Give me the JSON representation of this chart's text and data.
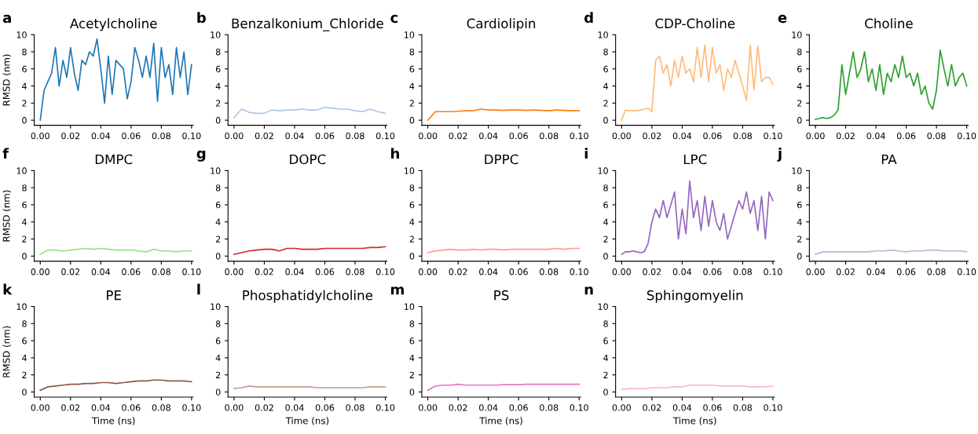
{
  "chart_data": [
    {
      "type": "line",
      "title": "Acetylcholine",
      "annotations": [
        "a"
      ],
      "ylabel": "RMSD (nm)",
      "x": [
        0,
        0.0025,
        0.005,
        0.0075,
        0.01,
        0.0125,
        0.015,
        0.0175,
        0.02,
        0.0225,
        0.025,
        0.0275,
        0.03,
        0.0325,
        0.035,
        0.0375,
        0.04,
        0.0425,
        0.045,
        0.0475,
        0.05,
        0.0525,
        0.055,
        0.0575,
        0.06,
        0.0625,
        0.065,
        0.0675,
        0.07,
        0.0725,
        0.075,
        0.0775,
        0.08,
        0.0825,
        0.085,
        0.0875,
        0.09,
        0.0925,
        0.095,
        0.0975,
        0.1
      ],
      "series": [
        {
          "color": "#1f77b4",
          "values": [
            0,
            3.5,
            4.5,
            5.5,
            8.5,
            4,
            7,
            5,
            8.5,
            5.5,
            3.5,
            7,
            6.5,
            8,
            7.5,
            9.5,
            6,
            2,
            7.5,
            3,
            7,
            6.5,
            6,
            2.5,
            4.5,
            8.5,
            7,
            5,
            7.5,
            5,
            9,
            2.2,
            8.5,
            5,
            6.5,
            3,
            8.5,
            5,
            8,
            3,
            6.5
          ]
        }
      ],
      "xlim": [
        -0.004,
        0.101
      ],
      "ylim": [
        -0.6,
        10
      ],
      "xticks": [
        {
          "value": 0,
          "label": "0.00"
        },
        {
          "value": 0.02,
          "label": "0.02"
        },
        {
          "value": 0.04,
          "label": "0.04"
        },
        {
          "value": 0.06,
          "label": "0.06"
        },
        {
          "value": 0.08,
          "label": "0.08"
        },
        {
          "value": 0.1,
          "label": "0.10"
        }
      ],
      "yticks": [
        0,
        2,
        4,
        6,
        8,
        10
      ]
    },
    {
      "type": "line",
      "title": "Benzalkonium_Chloride",
      "annotations": [
        "b"
      ],
      "x": [
        0,
        0.005,
        0.01,
        0.015,
        0.02,
        0.025,
        0.03,
        0.035,
        0.04,
        0.045,
        0.05,
        0.055,
        0.06,
        0.065,
        0.07,
        0.075,
        0.08,
        0.085,
        0.09,
        0.095,
        0.1
      ],
      "series": [
        {
          "color": "#aec7e8",
          "values": [
            0.3,
            1.3,
            0.9,
            0.8,
            0.8,
            1.2,
            1.1,
            1.2,
            1.2,
            1.3,
            1.2,
            1.2,
            1.5,
            1.4,
            1.3,
            1.3,
            1.1,
            1.0,
            1.3,
            1.0,
            0.8
          ]
        }
      ],
      "xlim": [
        -0.004,
        0.101
      ],
      "ylim": [
        -0.6,
        10
      ],
      "xticks": [
        {
          "value": 0,
          "label": "0.00"
        },
        {
          "value": 0.02,
          "label": "0.02"
        },
        {
          "value": 0.04,
          "label": "0.04"
        },
        {
          "value": 0.06,
          "label": "0.06"
        },
        {
          "value": 0.08,
          "label": "0.08"
        },
        {
          "value": 0.1,
          "label": "0.10"
        }
      ],
      "yticks": [
        0,
        2,
        4,
        6,
        8,
        10
      ]
    },
    {
      "type": "line",
      "title": "Cardiolipin",
      "annotations": [
        "c"
      ],
      "x": [
        0,
        0.005,
        0.01,
        0.015,
        0.02,
        0.025,
        0.03,
        0.035,
        0.04,
        0.045,
        0.05,
        0.055,
        0.06,
        0.065,
        0.07,
        0.075,
        0.08,
        0.085,
        0.09,
        0.095,
        0.1
      ],
      "series": [
        {
          "color": "#ff7f0e",
          "values": [
            0,
            1,
            1,
            1,
            1.05,
            1.1,
            1.1,
            1.3,
            1.2,
            1.2,
            1.15,
            1.2,
            1.2,
            1.15,
            1.2,
            1.15,
            1.1,
            1.2,
            1.15,
            1.1,
            1.1
          ]
        }
      ],
      "xlim": [
        -0.004,
        0.101
      ],
      "ylim": [
        -0.6,
        10
      ],
      "xticks": [
        {
          "value": 0,
          "label": "0.00"
        },
        {
          "value": 0.02,
          "label": "0.02"
        },
        {
          "value": 0.04,
          "label": "0.04"
        },
        {
          "value": 0.06,
          "label": "0.06"
        },
        {
          "value": 0.08,
          "label": "0.08"
        },
        {
          "value": 0.1,
          "label": "0.10"
        }
      ],
      "yticks": [
        0,
        2,
        4,
        6,
        8,
        10
      ]
    },
    {
      "type": "line",
      "title": "CDP-Choline",
      "annotations": [
        "d"
      ],
      "x": [
        0,
        0.0025,
        0.005,
        0.0075,
        0.01,
        0.0125,
        0.015,
        0.0175,
        0.02,
        0.0225,
        0.025,
        0.0275,
        0.03,
        0.0325,
        0.035,
        0.0375,
        0.04,
        0.0425,
        0.045,
        0.0475,
        0.05,
        0.0525,
        0.055,
        0.0575,
        0.06,
        0.0625,
        0.065,
        0.0675,
        0.07,
        0.0725,
        0.075,
        0.0775,
        0.08,
        0.0825,
        0.085,
        0.0875,
        0.09,
        0.0925,
        0.095,
        0.0975,
        0.1
      ],
      "series": [
        {
          "color": "#ffbb78",
          "values": [
            0,
            1.2,
            1.1,
            1.1,
            1.1,
            1.2,
            1.3,
            1.4,
            1.0,
            7.0,
            7.5,
            5.5,
            6.5,
            4.0,
            7.0,
            5.0,
            7.5,
            5.5,
            6.0,
            4.5,
            8.5,
            5.0,
            8.8,
            4.5,
            8.5,
            5.5,
            6.5,
            3.5,
            6.0,
            5.0,
            7.0,
            5.5,
            4.0,
            2.3,
            8.8,
            3.5,
            8.7,
            4.5,
            5.0,
            5.0,
            4.2
          ]
        }
      ],
      "xlim": [
        -0.004,
        0.101
      ],
      "ylim": [
        -0.6,
        10
      ],
      "xticks": [
        {
          "value": 0,
          "label": "0.00"
        },
        {
          "value": 0.02,
          "label": "0.02"
        },
        {
          "value": 0.04,
          "label": "0.04"
        },
        {
          "value": 0.06,
          "label": "0.06"
        },
        {
          "value": 0.08,
          "label": "0.08"
        },
        {
          "value": 0.1,
          "label": "0.10"
        }
      ],
      "yticks": [
        0,
        2,
        4,
        6,
        8,
        10
      ]
    },
    {
      "type": "line",
      "title": "Choline",
      "annotations": [
        "e"
      ],
      "x": [
        0,
        0.0025,
        0.005,
        0.0075,
        0.01,
        0.0125,
        0.015,
        0.0175,
        0.02,
        0.0225,
        0.025,
        0.0275,
        0.03,
        0.0325,
        0.035,
        0.0375,
        0.04,
        0.0425,
        0.045,
        0.0475,
        0.05,
        0.0525,
        0.055,
        0.0575,
        0.06,
        0.0625,
        0.065,
        0.0675,
        0.07,
        0.0725,
        0.075,
        0.0775,
        0.08,
        0.0825,
        0.085,
        0.0875,
        0.09,
        0.0925,
        0.095,
        0.0975,
        0.1
      ],
      "series": [
        {
          "color": "#2ca02c",
          "values": [
            0.1,
            0.2,
            0.3,
            0.2,
            0.3,
            0.6,
            1.2,
            6.5,
            3.0,
            5.5,
            8.0,
            5.0,
            6.0,
            8.0,
            4.5,
            6.0,
            3.5,
            6.5,
            3.0,
            5.5,
            4.5,
            6.5,
            5.0,
            7.5,
            5.0,
            5.5,
            4.0,
            5.5,
            3.0,
            4.0,
            2.0,
            1.3,
            3.5,
            8.2,
            6.0,
            4.0,
            6.5,
            4.0,
            5.0,
            5.5,
            4.0
          ]
        }
      ],
      "xlim": [
        -0.004,
        0.101
      ],
      "ylim": [
        -0.6,
        10
      ],
      "xticks": [
        {
          "value": 0,
          "label": "0.00"
        },
        {
          "value": 0.02,
          "label": "0.02"
        },
        {
          "value": 0.04,
          "label": "0.04"
        },
        {
          "value": 0.06,
          "label": "0.06"
        },
        {
          "value": 0.08,
          "label": "0.08"
        },
        {
          "value": 0.1,
          "label": "0.10"
        }
      ],
      "yticks": [
        0,
        2,
        4,
        6,
        8,
        10
      ]
    },
    {
      "type": "line",
      "title": "DMPC",
      "annotations": [
        "f"
      ],
      "ylabel": "RMSD (nm)",
      "x": [
        0,
        0.005,
        0.01,
        0.015,
        0.02,
        0.025,
        0.03,
        0.035,
        0.04,
        0.045,
        0.05,
        0.055,
        0.06,
        0.065,
        0.07,
        0.075,
        0.08,
        0.085,
        0.09,
        0.095,
        0.1
      ],
      "series": [
        {
          "color": "#98df8a",
          "values": [
            0.2,
            0.7,
            0.7,
            0.6,
            0.7,
            0.8,
            0.9,
            0.8,
            0.9,
            0.8,
            0.7,
            0.7,
            0.7,
            0.6,
            0.5,
            0.8,
            0.6,
            0.6,
            0.5,
            0.6,
            0.6
          ]
        }
      ],
      "xlim": [
        -0.004,
        0.101
      ],
      "ylim": [
        -0.6,
        10
      ],
      "xticks": [
        {
          "value": 0,
          "label": "0.00"
        },
        {
          "value": 0.02,
          "label": "0.02"
        },
        {
          "value": 0.04,
          "label": "0.04"
        },
        {
          "value": 0.06,
          "label": "0.06"
        },
        {
          "value": 0.08,
          "label": "0.08"
        },
        {
          "value": 0.1,
          "label": "0.10"
        }
      ],
      "yticks": [
        0,
        2,
        4,
        6,
        8,
        10
      ]
    },
    {
      "type": "line",
      "title": "DOPC",
      "annotations": [
        "g"
      ],
      "x": [
        0,
        0.005,
        0.01,
        0.015,
        0.02,
        0.025,
        0.03,
        0.035,
        0.04,
        0.045,
        0.05,
        0.055,
        0.06,
        0.065,
        0.07,
        0.075,
        0.08,
        0.085,
        0.09,
        0.095,
        0.1
      ],
      "series": [
        {
          "color": "#d62728",
          "values": [
            0.2,
            0.4,
            0.6,
            0.7,
            0.8,
            0.8,
            0.6,
            0.9,
            0.9,
            0.8,
            0.8,
            0.8,
            0.9,
            0.9,
            0.9,
            0.9,
            0.9,
            0.9,
            1.0,
            1.0,
            1.1
          ]
        }
      ],
      "xlim": [
        -0.004,
        0.101
      ],
      "ylim": [
        -0.6,
        10
      ],
      "xticks": [
        {
          "value": 0,
          "label": "0.00"
        },
        {
          "value": 0.02,
          "label": "0.02"
        },
        {
          "value": 0.04,
          "label": "0.04"
        },
        {
          "value": 0.06,
          "label": "0.06"
        },
        {
          "value": 0.08,
          "label": "0.08"
        },
        {
          "value": 0.1,
          "label": "0.10"
        }
      ],
      "yticks": [
        0,
        2,
        4,
        6,
        8,
        10
      ]
    },
    {
      "type": "line",
      "title": "DPPC",
      "annotations": [
        "h"
      ],
      "x": [
        0,
        0.005,
        0.01,
        0.015,
        0.02,
        0.025,
        0.03,
        0.035,
        0.04,
        0.045,
        0.05,
        0.055,
        0.06,
        0.065,
        0.07,
        0.075,
        0.08,
        0.085,
        0.09,
        0.095,
        0.1
      ],
      "series": [
        {
          "color": "#ff9896",
          "values": [
            0.4,
            0.6,
            0.7,
            0.8,
            0.7,
            0.7,
            0.8,
            0.7,
            0.8,
            0.8,
            0.7,
            0.8,
            0.8,
            0.8,
            0.8,
            0.8,
            0.8,
            0.9,
            0.8,
            0.9,
            0.9
          ]
        }
      ],
      "xlim": [
        -0.004,
        0.101
      ],
      "ylim": [
        -0.6,
        10
      ],
      "xticks": [
        {
          "value": 0,
          "label": "0.00"
        },
        {
          "value": 0.02,
          "label": "0.02"
        },
        {
          "value": 0.04,
          "label": "0.04"
        },
        {
          "value": 0.06,
          "label": "0.06"
        },
        {
          "value": 0.08,
          "label": "0.08"
        },
        {
          "value": 0.1,
          "label": "0.10"
        }
      ],
      "yticks": [
        0,
        2,
        4,
        6,
        8,
        10
      ]
    },
    {
      "type": "line",
      "title": "LPC",
      "annotations": [
        "i"
      ],
      "x": [
        0,
        0.0025,
        0.005,
        0.0075,
        0.01,
        0.0125,
        0.015,
        0.0175,
        0.02,
        0.0225,
        0.025,
        0.0275,
        0.03,
        0.0325,
        0.035,
        0.0375,
        0.04,
        0.0425,
        0.045,
        0.0475,
        0.05,
        0.0525,
        0.055,
        0.0575,
        0.06,
        0.0625,
        0.065,
        0.0675,
        0.07,
        0.0725,
        0.075,
        0.0775,
        0.08,
        0.0825,
        0.085,
        0.0875,
        0.09,
        0.0925,
        0.095,
        0.0975,
        0.1
      ],
      "series": [
        {
          "color": "#9467bd",
          "values": [
            0.2,
            0.5,
            0.5,
            0.6,
            0.5,
            0.4,
            0.5,
            1.5,
            4.0,
            5.5,
            4.5,
            6.5,
            4.5,
            6.0,
            7.5,
            2.0,
            5.5,
            2.6,
            8.8,
            4.5,
            6.5,
            3.0,
            7.0,
            3.5,
            6.5,
            4.0,
            3.0,
            5.0,
            2.0,
            3.5,
            5.0,
            6.5,
            5.5,
            7.5,
            5.0,
            6.5,
            3.0,
            7.0,
            2.0,
            7.5,
            6.5
          ]
        }
      ],
      "xlim": [
        -0.004,
        0.101
      ],
      "ylim": [
        -0.6,
        10
      ],
      "xticks": [
        {
          "value": 0,
          "label": "0.00"
        },
        {
          "value": 0.02,
          "label": "0.02"
        },
        {
          "value": 0.04,
          "label": "0.04"
        },
        {
          "value": 0.06,
          "label": "0.06"
        },
        {
          "value": 0.08,
          "label": "0.08"
        },
        {
          "value": 0.1,
          "label": "0.10"
        }
      ],
      "yticks": [
        0,
        2,
        4,
        6,
        8,
        10
      ]
    },
    {
      "type": "line",
      "title": "PA",
      "annotations": [
        "j"
      ],
      "x": [
        0,
        0.005,
        0.01,
        0.015,
        0.02,
        0.025,
        0.03,
        0.035,
        0.04,
        0.045,
        0.05,
        0.055,
        0.06,
        0.065,
        0.07,
        0.075,
        0.08,
        0.085,
        0.09,
        0.095,
        0.1
      ],
      "series": [
        {
          "color": "#c5b0d5",
          "values": [
            0.2,
            0.5,
            0.5,
            0.5,
            0.5,
            0.5,
            0.5,
            0.5,
            0.6,
            0.6,
            0.7,
            0.6,
            0.5,
            0.6,
            0.6,
            0.7,
            0.7,
            0.6,
            0.6,
            0.6,
            0.5
          ]
        }
      ],
      "xlim": [
        -0.004,
        0.101
      ],
      "ylim": [
        -0.6,
        10
      ],
      "xticks": [
        {
          "value": 0,
          "label": "0.00"
        },
        {
          "value": 0.02,
          "label": "0.02"
        },
        {
          "value": 0.04,
          "label": "0.04"
        },
        {
          "value": 0.06,
          "label": "0.06"
        },
        {
          "value": 0.08,
          "label": "0.08"
        },
        {
          "value": 0.1,
          "label": "0.10"
        }
      ],
      "yticks": [
        0,
        2,
        4,
        6,
        8,
        10
      ]
    },
    {
      "type": "line",
      "title": "PE",
      "annotations": [
        "k"
      ],
      "ylabel": "RMSD (nm)",
      "xlabel": "Time (ns)",
      "x": [
        0,
        0.005,
        0.01,
        0.015,
        0.02,
        0.025,
        0.03,
        0.035,
        0.04,
        0.045,
        0.05,
        0.055,
        0.06,
        0.065,
        0.07,
        0.075,
        0.08,
        0.085,
        0.09,
        0.095,
        0.1
      ],
      "series": [
        {
          "color": "#8c564b",
          "values": [
            0.2,
            0.6,
            0.7,
            0.8,
            0.9,
            0.9,
            1.0,
            1.0,
            1.1,
            1.1,
            1.0,
            1.1,
            1.2,
            1.3,
            1.3,
            1.4,
            1.4,
            1.3,
            1.3,
            1.3,
            1.2
          ]
        }
      ],
      "xlim": [
        -0.004,
        0.101
      ],
      "ylim": [
        -0.6,
        10
      ],
      "xticks": [
        {
          "value": 0,
          "label": "0.00"
        },
        {
          "value": 0.02,
          "label": "0.02"
        },
        {
          "value": 0.04,
          "label": "0.04"
        },
        {
          "value": 0.06,
          "label": "0.06"
        },
        {
          "value": 0.08,
          "label": "0.08"
        },
        {
          "value": 0.1,
          "label": "0.10"
        }
      ],
      "yticks": [
        0,
        2,
        4,
        6,
        8,
        10
      ]
    },
    {
      "type": "line",
      "title": "Phosphatidylcholine",
      "annotations": [
        "l"
      ],
      "xlabel": "Time (ns)",
      "x": [
        0,
        0.005,
        0.01,
        0.015,
        0.02,
        0.025,
        0.03,
        0.035,
        0.04,
        0.045,
        0.05,
        0.055,
        0.06,
        0.065,
        0.07,
        0.075,
        0.08,
        0.085,
        0.09,
        0.095,
        0.1
      ],
      "series": [
        {
          "color": "#c49c94",
          "values": [
            0.4,
            0.5,
            0.7,
            0.6,
            0.6,
            0.6,
            0.6,
            0.6,
            0.6,
            0.6,
            0.6,
            0.5,
            0.5,
            0.5,
            0.5,
            0.5,
            0.5,
            0.5,
            0.6,
            0.6,
            0.6
          ]
        }
      ],
      "xlim": [
        -0.004,
        0.101
      ],
      "ylim": [
        -0.6,
        10
      ],
      "xticks": [
        {
          "value": 0,
          "label": "0.00"
        },
        {
          "value": 0.02,
          "label": "0.02"
        },
        {
          "value": 0.04,
          "label": "0.04"
        },
        {
          "value": 0.06,
          "label": "0.06"
        },
        {
          "value": 0.08,
          "label": "0.08"
        },
        {
          "value": 0.1,
          "label": "0.10"
        }
      ],
      "yticks": [
        0,
        2,
        4,
        6,
        8,
        10
      ]
    },
    {
      "type": "line",
      "title": "PS",
      "annotations": [
        "m"
      ],
      "xlabel": "Time (ns)",
      "x": [
        0,
        0.005,
        0.01,
        0.015,
        0.02,
        0.025,
        0.03,
        0.035,
        0.04,
        0.045,
        0.05,
        0.055,
        0.06,
        0.065,
        0.07,
        0.075,
        0.08,
        0.085,
        0.09,
        0.095,
        0.1
      ],
      "series": [
        {
          "color": "#e377c2",
          "values": [
            0.2,
            0.7,
            0.8,
            0.8,
            0.9,
            0.8,
            0.8,
            0.8,
            0.8,
            0.8,
            0.85,
            0.85,
            0.85,
            0.9,
            0.9,
            0.9,
            0.9,
            0.9,
            0.9,
            0.9,
            0.9
          ]
        }
      ],
      "xlim": [
        -0.004,
        0.101
      ],
      "ylim": [
        -0.6,
        10
      ],
      "xticks": [
        {
          "value": 0,
          "label": "0.00"
        },
        {
          "value": 0.02,
          "label": "0.02"
        },
        {
          "value": 0.04,
          "label": "0.04"
        },
        {
          "value": 0.06,
          "label": "0.06"
        },
        {
          "value": 0.08,
          "label": "0.08"
        },
        {
          "value": 0.1,
          "label": "0.10"
        }
      ],
      "yticks": [
        0,
        2,
        4,
        6,
        8,
        10
      ]
    },
    {
      "type": "line",
      "title": "Sphingomyelin",
      "annotations": [
        "n"
      ],
      "xlabel": "Time (ns)",
      "x": [
        0,
        0.005,
        0.01,
        0.015,
        0.02,
        0.025,
        0.03,
        0.035,
        0.04,
        0.045,
        0.05,
        0.055,
        0.06,
        0.065,
        0.07,
        0.075,
        0.08,
        0.085,
        0.09,
        0.095,
        0.1
      ],
      "series": [
        {
          "color": "#f7b6d2",
          "values": [
            0.3,
            0.4,
            0.4,
            0.4,
            0.5,
            0.5,
            0.5,
            0.6,
            0.6,
            0.8,
            0.8,
            0.8,
            0.8,
            0.7,
            0.7,
            0.7,
            0.7,
            0.6,
            0.6,
            0.6,
            0.7
          ]
        }
      ],
      "xlim": [
        -0.004,
        0.101
      ],
      "ylim": [
        -0.6,
        10
      ],
      "xticks": [
        {
          "value": 0,
          "label": "0.00"
        },
        {
          "value": 0.02,
          "label": "0.02"
        },
        {
          "value": 0.04,
          "label": "0.04"
        },
        {
          "value": 0.06,
          "label": "0.06"
        },
        {
          "value": 0.08,
          "label": "0.08"
        },
        {
          "value": 0.1,
          "label": "0.10"
        }
      ],
      "yticks": [
        0,
        2,
        4,
        6,
        8,
        10
      ]
    }
  ]
}
